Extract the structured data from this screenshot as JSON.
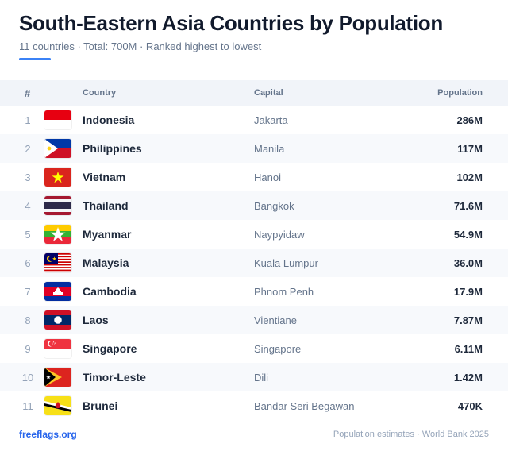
{
  "header": {
    "title": "South-Eastern Asia Countries by Population",
    "subtitle": "11 countries · Total: 700M · Ranked highest to lowest"
  },
  "columns": {
    "rank": "#",
    "country": "Country",
    "capital": "Capital",
    "population": "Population"
  },
  "rows": [
    {
      "rank": "1",
      "country": "Indonesia",
      "capital": "Jakarta",
      "population": "286M",
      "flag": "indonesia-flag-icon"
    },
    {
      "rank": "2",
      "country": "Philippines",
      "capital": "Manila",
      "population": "117M",
      "flag": "philippines-flag-icon"
    },
    {
      "rank": "3",
      "country": "Vietnam",
      "capital": "Hanoi",
      "population": "102M",
      "flag": "vietnam-flag-icon"
    },
    {
      "rank": "4",
      "country": "Thailand",
      "capital": "Bangkok",
      "population": "71.6M",
      "flag": "thailand-flag-icon"
    },
    {
      "rank": "5",
      "country": "Myanmar",
      "capital": "Naypyidaw",
      "population": "54.9M",
      "flag": "myanmar-flag-icon"
    },
    {
      "rank": "6",
      "country": "Malaysia",
      "capital": "Kuala Lumpur",
      "population": "36.0M",
      "flag": "malaysia-flag-icon"
    },
    {
      "rank": "7",
      "country": "Cambodia",
      "capital": "Phnom Penh",
      "population": "17.9M",
      "flag": "cambodia-flag-icon"
    },
    {
      "rank": "8",
      "country": "Laos",
      "capital": "Vientiane",
      "population": "7.87M",
      "flag": "laos-flag-icon"
    },
    {
      "rank": "9",
      "country": "Singapore",
      "capital": "Singapore",
      "population": "6.11M",
      "flag": "singapore-flag-icon"
    },
    {
      "rank": "10",
      "country": "Timor-Leste",
      "capital": "Dili",
      "population": "1.42M",
      "flag": "timor-leste-flag-icon"
    },
    {
      "rank": "11",
      "country": "Brunei",
      "capital": "Bandar Seri Begawan",
      "population": "470K",
      "flag": "brunei-flag-icon"
    }
  ],
  "footer": {
    "source_link": "freeflags.org",
    "note": "Population estimates · World Bank 2025"
  },
  "colors": {
    "accent": "#3b82f6",
    "link": "#2563eb",
    "title": "#111a2c",
    "muted": "#64748b",
    "header_bg": "#f1f4f9",
    "alt_row_bg": "#f7f9fc"
  }
}
